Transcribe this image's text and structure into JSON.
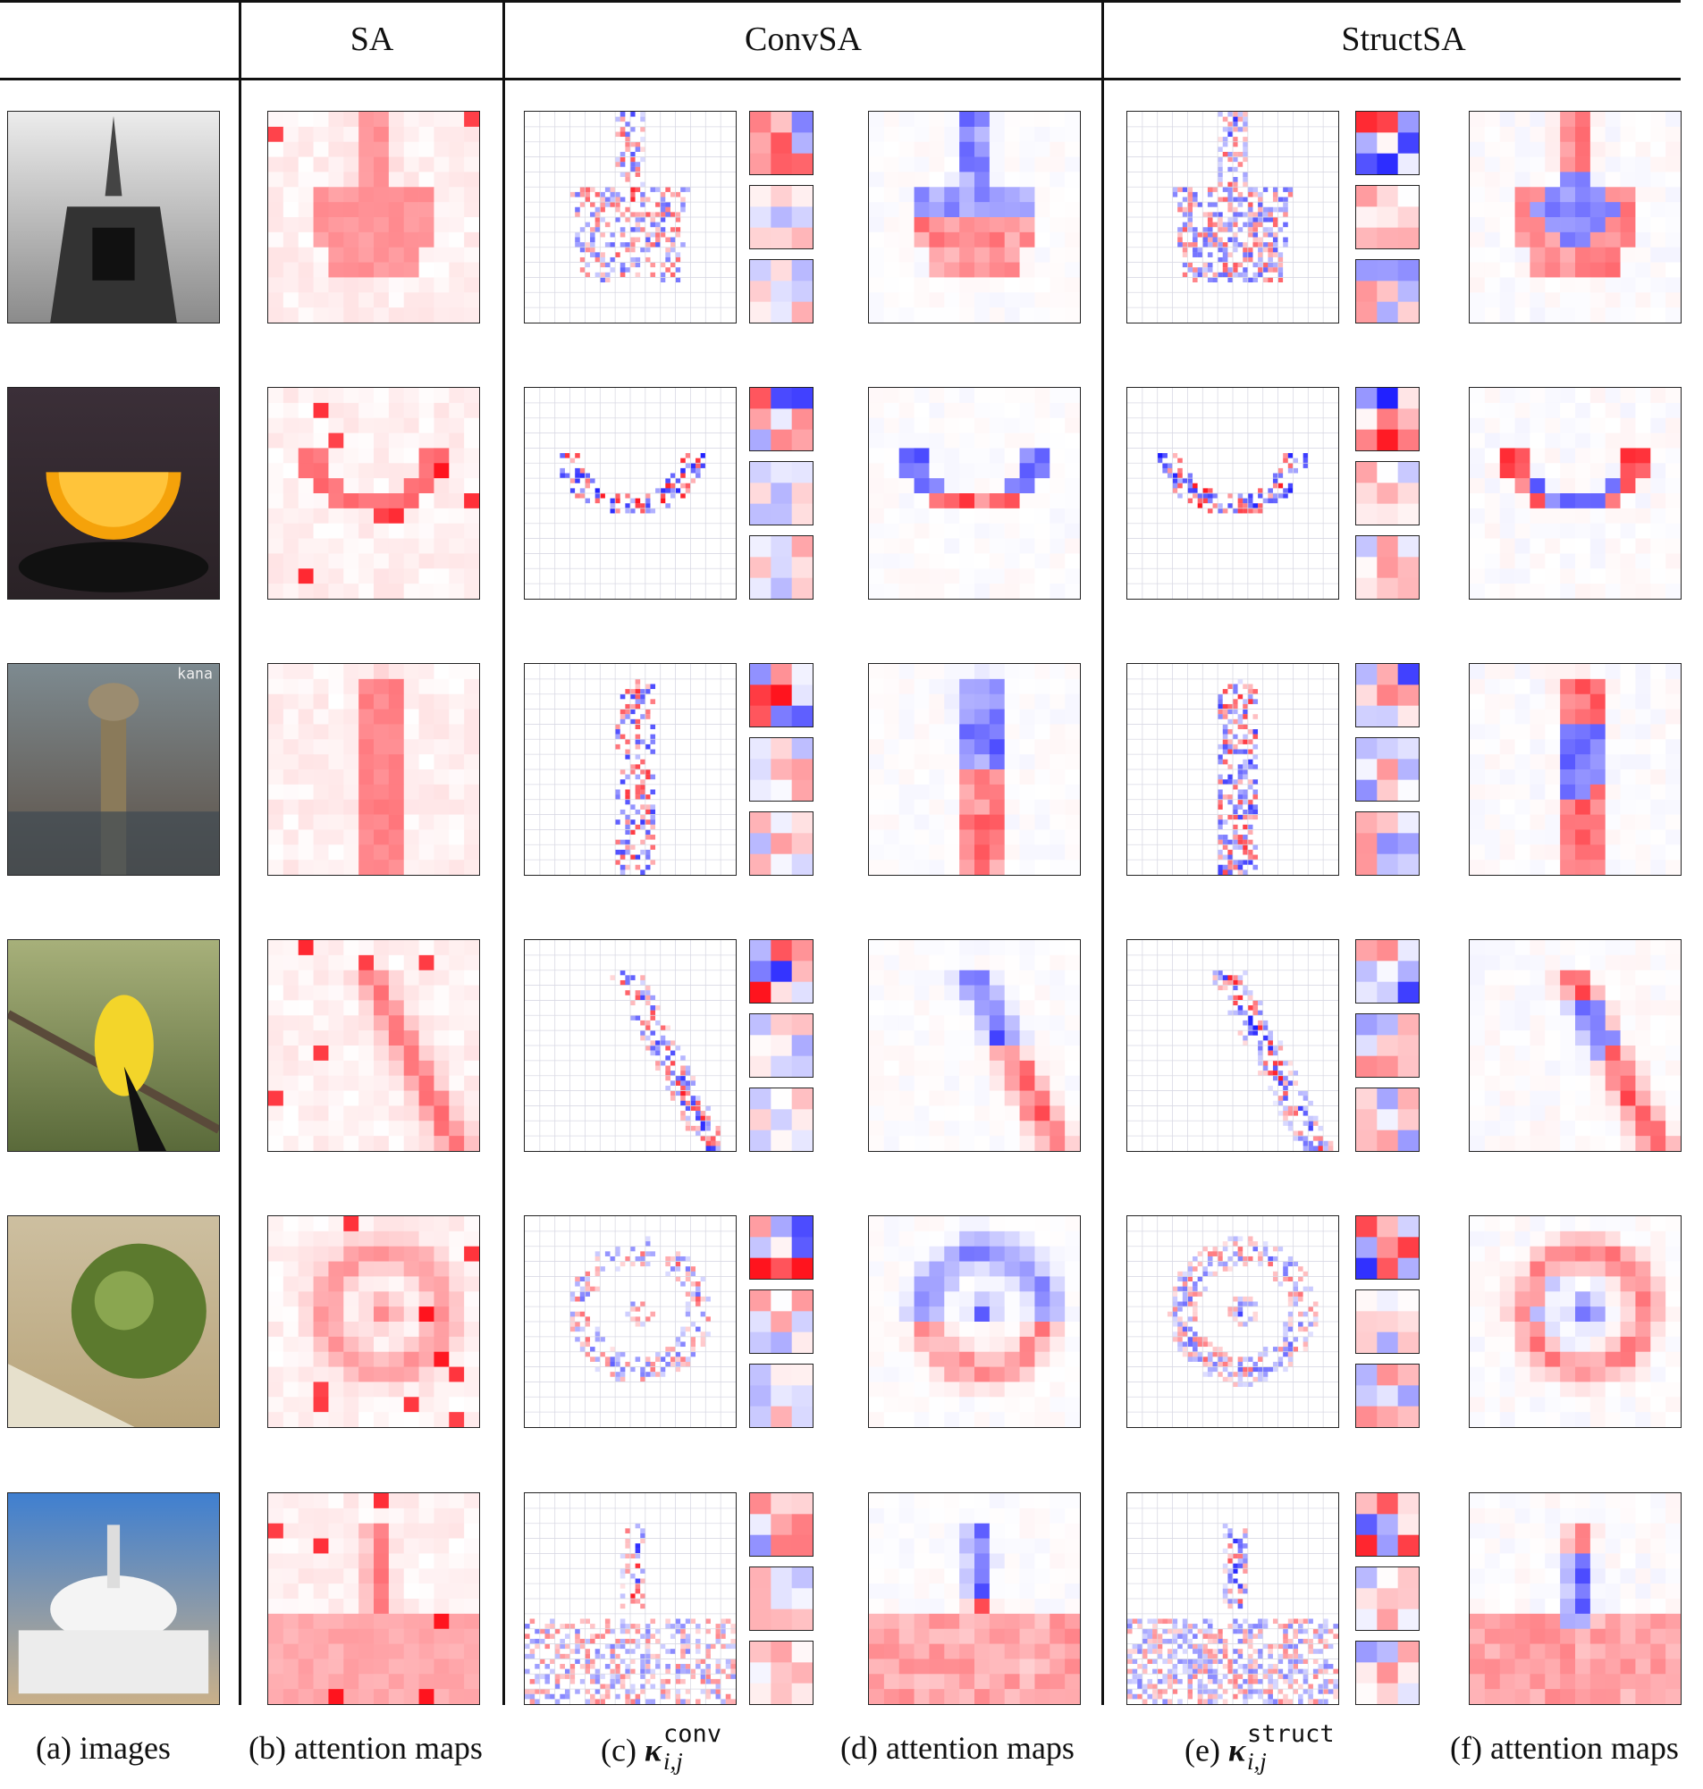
{
  "figure": {
    "headers": {
      "sa": "SA",
      "convsa": "ConvSA",
      "structsa": "StructSA"
    },
    "captions": {
      "a": "(a) images",
      "b": "(b) attention maps",
      "c_prefix": "(c)",
      "c_symbol": "κ",
      "c_sup": "conv",
      "c_sub": "i,j",
      "d": "(d) attention maps",
      "e_prefix": "(e)",
      "e_symbol": "κ",
      "e_sup": "struct",
      "e_sub": "i,j",
      "f": "(f) attention maps"
    },
    "image_watermark": "kana",
    "rows": [
      {
        "subject": "stupa-bw-icon"
      },
      {
        "subject": "orange-slice-icon"
      },
      {
        "subject": "ostrich-icon"
      },
      {
        "subject": "goldfinch-icon"
      },
      {
        "subject": "green-apple-icon"
      },
      {
        "subject": "white-stupa-icon"
      }
    ],
    "colors": {
      "positive": "#e8141f",
      "negative": "#1a1ae6",
      "neutral": "#ffffff",
      "rule": "#111111"
    }
  }
}
